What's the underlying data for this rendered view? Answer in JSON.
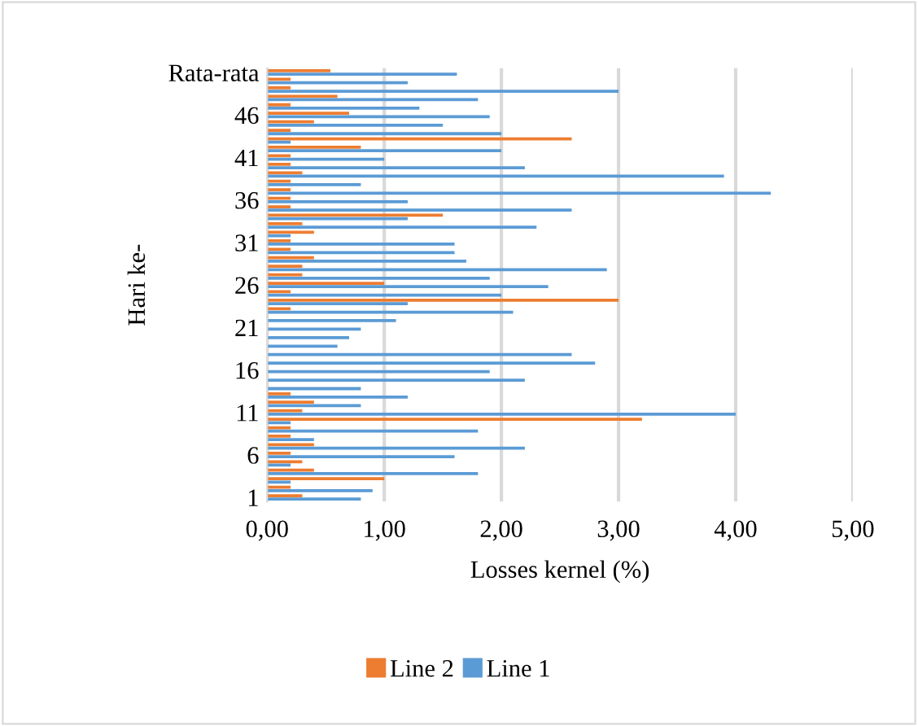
{
  "chart_data": {
    "type": "bar",
    "orientation": "horizontal",
    "xlabel": "Losses kernel (%)",
    "ylabel": "Hari ke-",
    "categories": [
      "Rata-rata",
      null,
      null,
      null,
      null,
      "46",
      null,
      null,
      null,
      null,
      "41",
      null,
      null,
      null,
      null,
      "36",
      null,
      null,
      null,
      null,
      "31",
      null,
      null,
      null,
      null,
      "26",
      null,
      null,
      null,
      null,
      "21",
      null,
      null,
      null,
      null,
      "16",
      null,
      null,
      null,
      null,
      "11",
      null,
      null,
      null,
      null,
      "6",
      null,
      null,
      null,
      null,
      "1"
    ],
    "series": [
      {
        "name": "Line 2",
        "color": "#ed7d31",
        "values": [
          0.54,
          0.2,
          0.2,
          0.6,
          0.2,
          0.7,
          0.4,
          0.2,
          2.6,
          0.8,
          0.2,
          0.2,
          0.3,
          0.2,
          0.2,
          0.2,
          0.2,
          1.5,
          0.3,
          0.4,
          0.2,
          0.2,
          0.4,
          0.3,
          0.3,
          1.0,
          0.2,
          3.0,
          0.2,
          null,
          null,
          null,
          null,
          null,
          null,
          null,
          null,
          null,
          0.2,
          0.4,
          0.3,
          3.2,
          0.2,
          0.2,
          0.4,
          0.2,
          0.3,
          0.4,
          1.0,
          0.2,
          0.3
        ]
      },
      {
        "name": "Line 1",
        "color": "#5b9bd5",
        "values": [
          1.62,
          1.2,
          3.0,
          1.8,
          1.3,
          1.9,
          1.5,
          2.0,
          0.2,
          2.0,
          1.0,
          2.2,
          3.9,
          0.8,
          4.3,
          1.2,
          2.6,
          1.2,
          2.3,
          0.2,
          1.6,
          1.6,
          1.7,
          2.9,
          1.9,
          2.4,
          2.0,
          1.2,
          2.1,
          1.1,
          0.8,
          0.7,
          0.6,
          2.6,
          2.8,
          1.9,
          2.2,
          0.8,
          1.2,
          0.8,
          4.0,
          0.2,
          1.8,
          0.4,
          2.2,
          1.6,
          0.2,
          1.8,
          0.2,
          0.9,
          0.8
        ]
      }
    ],
    "xlim": [
      0,
      5
    ],
    "xticks": [
      {
        "value": 0,
        "label": "0,00"
      },
      {
        "value": 1,
        "label": "1,00"
      },
      {
        "value": 2,
        "label": "2,00"
      },
      {
        "value": 3,
        "label": "3,00"
      },
      {
        "value": 4,
        "label": "4,00"
      },
      {
        "value": 5,
        "label": "5,00"
      }
    ],
    "grid": "x",
    "legend": "bottom"
  }
}
